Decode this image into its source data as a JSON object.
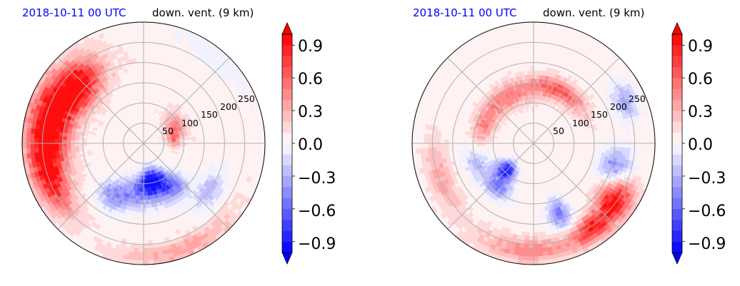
{
  "chart_data": [
    {
      "type": "heatmap",
      "projection": "polar",
      "time_label": "2018-10-11 00 UTC",
      "title": "down. vent. (9 km)",
      "radial_ticks": [
        "50",
        "100",
        "150",
        "200",
        "250"
      ],
      "radial_tick_values": [
        50,
        100,
        150,
        200,
        250
      ],
      "rmax": 300,
      "angular_grid_deg": [
        0,
        45,
        90,
        135,
        180,
        225,
        270,
        315
      ],
      "colorbar": {
        "ticks": [
          "0.9",
          "0.6",
          "0.3",
          "0.0",
          "−0.3",
          "−0.6",
          "−0.9"
        ],
        "tick_values": [
          0.9,
          0.6,
          0.3,
          0.0,
          -0.3,
          -0.6,
          -0.9
        ],
        "vmin": -1.0,
        "vmax": 1.0,
        "levels": 20,
        "extend": "both",
        "cmap": "bwr"
      },
      "features": [
        {
          "theta": 160,
          "r": 235,
          "value": 0.8,
          "spread_r": 55,
          "spread_t": 30
        },
        {
          "theta": 140,
          "r": 210,
          "value": 0.75,
          "spread_r": 45,
          "spread_t": 18
        },
        {
          "theta": 185,
          "r": 240,
          "value": 0.6,
          "spread_r": 45,
          "spread_t": 25
        },
        {
          "theta": 205,
          "r": 250,
          "value": 0.45,
          "spread_r": 35,
          "spread_t": 20
        },
        {
          "theta": 30,
          "r": 90,
          "value": 0.4,
          "spread_r": 25,
          "spread_t": 20
        },
        {
          "theta": 10,
          "r": 75,
          "value": 0.45,
          "spread_r": 15,
          "spread_t": 15
        },
        {
          "theta": 285,
          "r": 95,
          "value": -0.95,
          "spread_r": 30,
          "spread_t": 18
        },
        {
          "theta": 270,
          "r": 120,
          "value": -0.55,
          "spread_r": 40,
          "spread_t": 25
        },
        {
          "theta": 240,
          "r": 150,
          "value": -0.45,
          "spread_r": 35,
          "spread_t": 15
        },
        {
          "theta": 305,
          "r": 130,
          "value": -0.5,
          "spread_r": 35,
          "spread_t": 15
        },
        {
          "theta": 325,
          "r": 200,
          "value": -0.35,
          "spread_r": 30,
          "spread_t": 15
        },
        {
          "theta": 50,
          "r": 280,
          "value": -0.1,
          "spread_r": 40,
          "spread_t": 30
        },
        {
          "theta": 290,
          "r": 280,
          "value": 0.3,
          "spread_r": 25,
          "spread_t": 30
        }
      ],
      "background": 0.06
    },
    {
      "type": "heatmap",
      "projection": "polar",
      "time_label": "2018-10-11 00 UTC",
      "title": "down. vent. (9 km)",
      "radial_ticks": [
        "50",
        "100",
        "150",
        "200",
        "250"
      ],
      "radial_tick_values": [
        50,
        100,
        150,
        200,
        250
      ],
      "rmax": 300,
      "angular_grid_deg": [
        0,
        45,
        90,
        135,
        180,
        225,
        270,
        315
      ],
      "colorbar": {
        "ticks": [
          "0.9",
          "0.6",
          "0.3",
          "0.0",
          "−0.3",
          "−0.6",
          "−0.9"
        ],
        "tick_values": [
          0.9,
          0.6,
          0.3,
          0.0,
          -0.3,
          -0.6,
          -0.9
        ],
        "vmin": -1.0,
        "vmax": 1.0,
        "levels": 20,
        "extend": "both",
        "cmap": "bwr"
      },
      "features": [
        {
          "theta": 65,
          "r": 145,
          "value": 0.6,
          "spread_r": 25,
          "spread_t": 30
        },
        {
          "theta": 120,
          "r": 130,
          "value": 0.45,
          "spread_r": 30,
          "spread_t": 30
        },
        {
          "theta": 160,
          "r": 130,
          "value": 0.35,
          "spread_r": 25,
          "spread_t": 20
        },
        {
          "theta": 200,
          "r": 150,
          "value": -0.3,
          "spread_r": 30,
          "spread_t": 15
        },
        {
          "theta": 225,
          "r": 95,
          "value": -0.95,
          "spread_r": 25,
          "spread_t": 15
        },
        {
          "theta": 230,
          "r": 140,
          "value": -0.55,
          "spread_r": 25,
          "spread_t": 15
        },
        {
          "theta": 290,
          "r": 185,
          "value": -0.55,
          "spread_r": 40,
          "spread_t": 8
        },
        {
          "theta": 325,
          "r": 245,
          "value": 0.9,
          "spread_r": 40,
          "spread_t": 12
        },
        {
          "theta": 305,
          "r": 255,
          "value": 0.7,
          "spread_r": 30,
          "spread_t": 12
        },
        {
          "theta": 345,
          "r": 210,
          "value": -0.45,
          "spread_r": 40,
          "spread_t": 12
        },
        {
          "theta": 25,
          "r": 250,
          "value": -0.4,
          "spread_r": 30,
          "spread_t": 10
        },
        {
          "theta": 270,
          "r": 265,
          "value": 0.4,
          "spread_r": 30,
          "spread_t": 30
        },
        {
          "theta": 200,
          "r": 245,
          "value": 0.3,
          "spread_r": 30,
          "spread_t": 20
        }
      ],
      "background": 0.05
    }
  ]
}
